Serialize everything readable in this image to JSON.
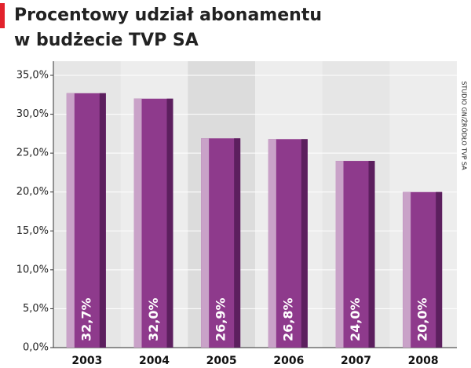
{
  "chart_data": {
    "type": "bar",
    "title": [
      "Procentowy udział abonamentu",
      "w budżecie TVP SA"
    ],
    "source": "STUDIO GN/ŹRÓDŁO TVP SA",
    "categories": [
      "2003",
      "2004",
      "2005",
      "2006",
      "2007",
      "2008"
    ],
    "values": [
      32.7,
      32.0,
      26.9,
      26.8,
      24.0,
      20.0
    ],
    "value_labels": [
      "32,7%",
      "32,0%",
      "26,9%",
      "26,8%",
      "24,0%",
      "20,0%"
    ],
    "color": "#8e3a8c",
    "ylim": [
      0,
      35
    ],
    "yticks": [
      {
        "value": 0,
        "label": "0,0%"
      },
      {
        "value": 5,
        "label": "5,0%"
      },
      {
        "value": 10,
        "label": "10,0%"
      },
      {
        "value": 15,
        "label": "15,0%"
      },
      {
        "value": 20,
        "label": "20,0%"
      },
      {
        "value": 25,
        "label": "25,0%"
      },
      {
        "value": 30,
        "label": "30,0%"
      },
      {
        "value": 35,
        "label": "35,0%"
      }
    ],
    "grid": true
  }
}
